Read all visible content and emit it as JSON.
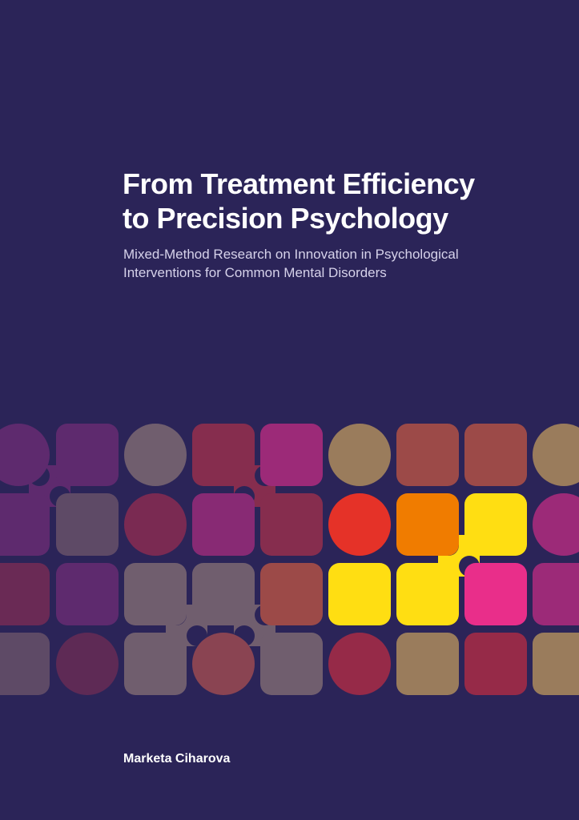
{
  "theme": {
    "background": "#2b2458",
    "subtitle_color": "#d6d2ea"
  },
  "title": {
    "line1": "From Treatment Efficiency",
    "line2": "to Precision Psychology"
  },
  "subtitle": {
    "line1": "Mixed-Method Research on Innovation in Psychological",
    "line2": "Interventions for Common Mental Disorders"
  },
  "author": "Marketa Ciharova",
  "pattern": {
    "rows": [
      [
        {
          "shape": "circle",
          "color": "#5e2a6e"
        },
        {
          "shape": "square",
          "color": "#5e2a6e"
        },
        {
          "shape": "circle",
          "color": "#705e6e"
        },
        {
          "shape": "square",
          "color": "#862d4e"
        },
        {
          "shape": "square",
          "color": "#9c2a78"
        },
        {
          "shape": "circle",
          "color": "#9a7c5c"
        },
        {
          "shape": "square",
          "color": "#9c4a48"
        },
        {
          "shape": "square",
          "color": "#9c4a48"
        },
        {
          "shape": "circle",
          "color": "#9a7c5c"
        }
      ],
      [
        {
          "shape": "square",
          "color": "#5e2a6e"
        },
        {
          "shape": "square",
          "color": "#5e4a66"
        },
        {
          "shape": "circle",
          "color": "#7a2a52"
        },
        {
          "shape": "square",
          "color": "#882a74"
        },
        {
          "shape": "square",
          "color": "#862d4e"
        },
        {
          "shape": "circle",
          "color": "#e53228"
        },
        {
          "shape": "square",
          "color": "#f07c00"
        },
        {
          "shape": "square",
          "color": "#ffde12"
        },
        {
          "shape": "circle",
          "color": "#9c2a78"
        }
      ],
      [
        {
          "shape": "square",
          "color": "#6a2a55"
        },
        {
          "shape": "square",
          "color": "#5e2a6e"
        },
        {
          "shape": "square",
          "color": "#705e6e"
        },
        {
          "shape": "square",
          "color": "#705e6e"
        },
        {
          "shape": "square",
          "color": "#9c4a48"
        },
        {
          "shape": "square",
          "color": "#ffde12"
        },
        {
          "shape": "square",
          "color": "#ffde12"
        },
        {
          "shape": "square",
          "color": "#e92e8a"
        },
        {
          "shape": "square",
          "color": "#9c2a78"
        }
      ],
      [
        {
          "shape": "square",
          "color": "#5e4a66"
        },
        {
          "shape": "circle",
          "color": "#5e2a55"
        },
        {
          "shape": "square",
          "color": "#705e6e"
        },
        {
          "shape": "circle",
          "color": "#8a4452"
        },
        {
          "shape": "square",
          "color": "#705e6e"
        },
        {
          "shape": "circle",
          "color": "#962a48"
        },
        {
          "shape": "square",
          "color": "#9a7c5c"
        },
        {
          "shape": "square",
          "color": "#962a48"
        },
        {
          "shape": "square",
          "color": "#9a7c5c"
        }
      ]
    ],
    "connectors": [
      {
        "from": [
          1,
          0
        ],
        "to": [
          0,
          1
        ],
        "color": "#5e2a6e"
      },
      {
        "from": [
          0,
          3
        ],
        "to": [
          1,
          4
        ],
        "color": "#862d4e"
      },
      {
        "from": [
          2,
          3
        ],
        "to": [
          3,
          2
        ],
        "color": "#705e6e"
      },
      {
        "from": [
          2,
          3
        ],
        "to": [
          3,
          4
        ],
        "color": "#705e6e"
      },
      {
        "from": [
          1,
          7
        ],
        "to": [
          2,
          6
        ],
        "color": "#ffde12"
      }
    ]
  }
}
